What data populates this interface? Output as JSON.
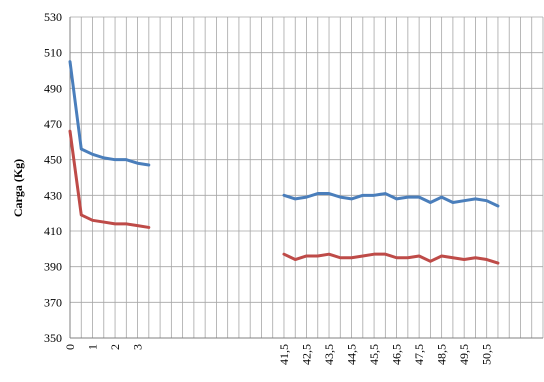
{
  "chart_data": {
    "type": "line",
    "title": "",
    "xlabel": "",
    "ylabel": "Carga (Kg)",
    "ylim": [
      350,
      530
    ],
    "yticks": [
      350,
      370,
      390,
      410,
      430,
      450,
      470,
      490,
      510,
      530
    ],
    "grid": "vertical-and-horizontal",
    "legend": "none",
    "slots": 43,
    "x_tick_labels": [
      {
        "slot": 0,
        "label": "0"
      },
      {
        "slot": 2,
        "label": "1"
      },
      {
        "slot": 4,
        "label": "2"
      },
      {
        "slot": 6,
        "label": "3"
      },
      {
        "slot": 19,
        "label": "41,5"
      },
      {
        "slot": 21,
        "label": "42,5"
      },
      {
        "slot": 23,
        "label": "43,5"
      },
      {
        "slot": 25,
        "label": "44,5"
      },
      {
        "slot": 27,
        "label": "45,5"
      },
      {
        "slot": 29,
        "label": "46,5"
      },
      {
        "slot": 31,
        "label": "47,5"
      },
      {
        "slot": 33,
        "label": "48,5"
      },
      {
        "slot": 35,
        "label": "49,5"
      },
      {
        "slot": 37,
        "label": "50,5"
      }
    ],
    "series": [
      {
        "color": "#4a7ebb",
        "segments": [
          {
            "start_slot": 0,
            "values": [
              505,
              456,
              453,
              451,
              450,
              450,
              448,
              447
            ]
          },
          {
            "start_slot": 19,
            "values": [
              430,
              428,
              429,
              431,
              431,
              429,
              428,
              430,
              430,
              431,
              428,
              429,
              429,
              426,
              429,
              426,
              427,
              428,
              427,
              424
            ]
          }
        ]
      },
      {
        "color": "#be4b48",
        "segments": [
          {
            "start_slot": 0,
            "values": [
              466,
              419,
              416,
              415,
              414,
              414,
              413,
              412
            ]
          },
          {
            "start_slot": 19,
            "values": [
              397,
              394,
              396,
              396,
              397,
              395,
              395,
              396,
              397,
              397,
              395,
              395,
              396,
              393,
              396,
              395,
              394,
              395,
              394,
              392
            ]
          }
        ]
      }
    ]
  }
}
